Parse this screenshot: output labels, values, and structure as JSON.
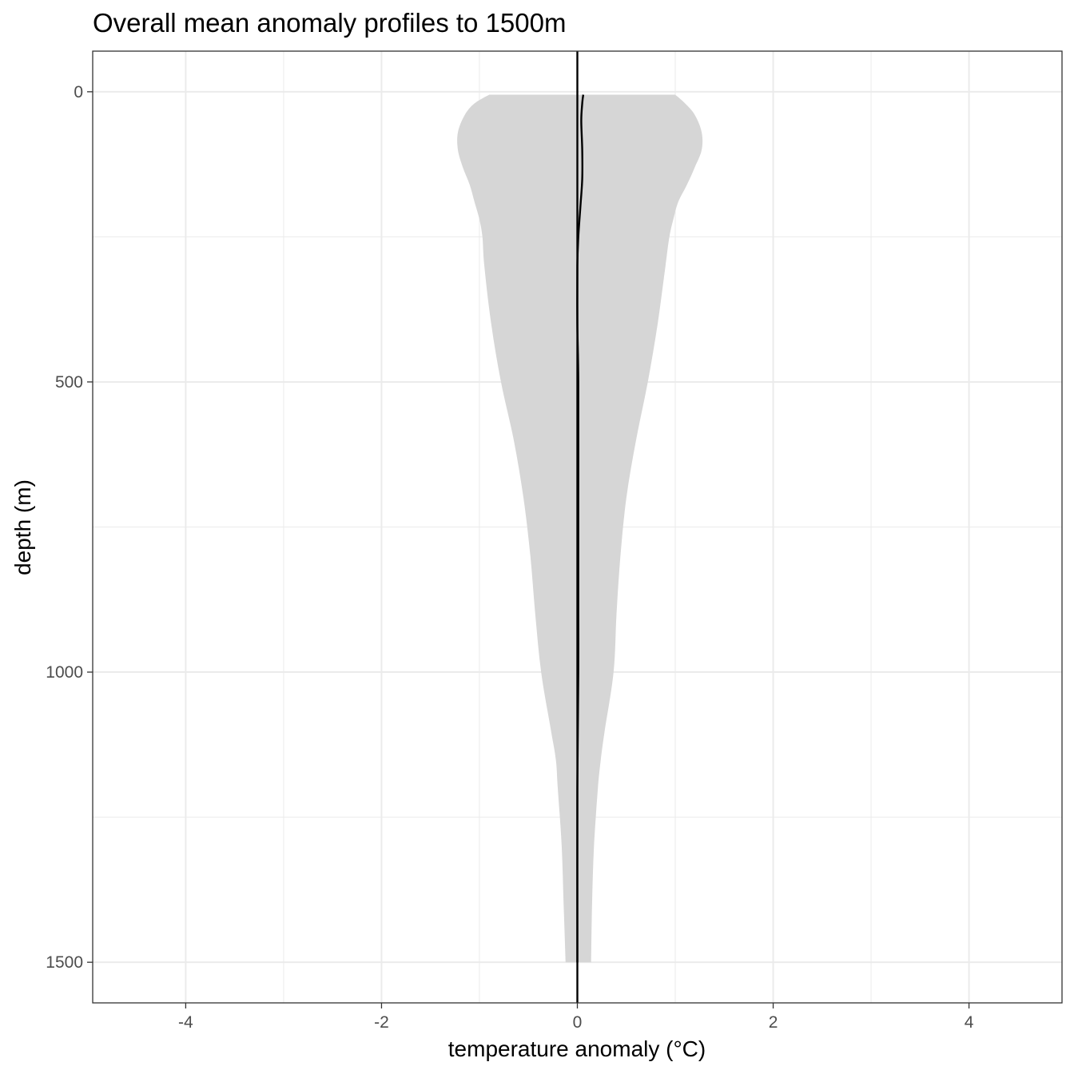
{
  "chart_data": {
    "type": "area",
    "title": "Overall mean anomaly profiles to 1500m",
    "xlabel": "temperature anomaly (°C)",
    "ylabel": "depth (m)",
    "xlim": [
      -4.95,
      4.95
    ],
    "ylim": [
      1570,
      -70
    ],
    "y_reversed": true,
    "x_ticks": [
      -4,
      -2,
      0,
      2,
      4
    ],
    "x_tick_labels": [
      "-4",
      "-2",
      "0",
      "2",
      "4"
    ],
    "y_ticks": [
      0,
      500,
      1000,
      1500
    ],
    "y_tick_labels": [
      "0",
      "500",
      "1000",
      "1500"
    ],
    "grid": true,
    "vline_x": 0,
    "series": [
      {
        "type": "ribbon",
        "color": "#d6d6d6",
        "depth": [
          5,
          20,
          40,
          70,
          100,
          130,
          160,
          190,
          220,
          250,
          300,
          400,
          500,
          600,
          700,
          800,
          900,
          1000,
          1100,
          1150,
          1200,
          1300,
          1400,
          1500
        ],
        "lower": [
          -0.9,
          -1.05,
          -1.15,
          -1.22,
          -1.22,
          -1.17,
          -1.1,
          -1.05,
          -1.0,
          -0.97,
          -0.95,
          -0.88,
          -0.78,
          -0.65,
          -0.55,
          -0.48,
          -0.43,
          -0.37,
          -0.27,
          -0.22,
          -0.2,
          -0.16,
          -0.14,
          -0.12
        ],
        "upper": [
          1.0,
          1.1,
          1.2,
          1.27,
          1.27,
          1.2,
          1.12,
          1.03,
          0.98,
          0.94,
          0.9,
          0.82,
          0.72,
          0.6,
          0.5,
          0.44,
          0.4,
          0.37,
          0.28,
          0.24,
          0.21,
          0.17,
          0.15,
          0.14
        ]
      },
      {
        "type": "line",
        "color": "#000000",
        "depth": [
          5,
          20,
          50,
          100,
          150,
          200,
          250,
          300,
          400,
          500,
          700,
          900,
          1000,
          1200,
          1500
        ],
        "values": [
          0.06,
          0.05,
          0.04,
          0.05,
          0.05,
          0.03,
          0.01,
          0.0,
          0.0,
          0.01,
          0.01,
          0.01,
          0.01,
          0.0,
          0.0
        ]
      }
    ]
  }
}
